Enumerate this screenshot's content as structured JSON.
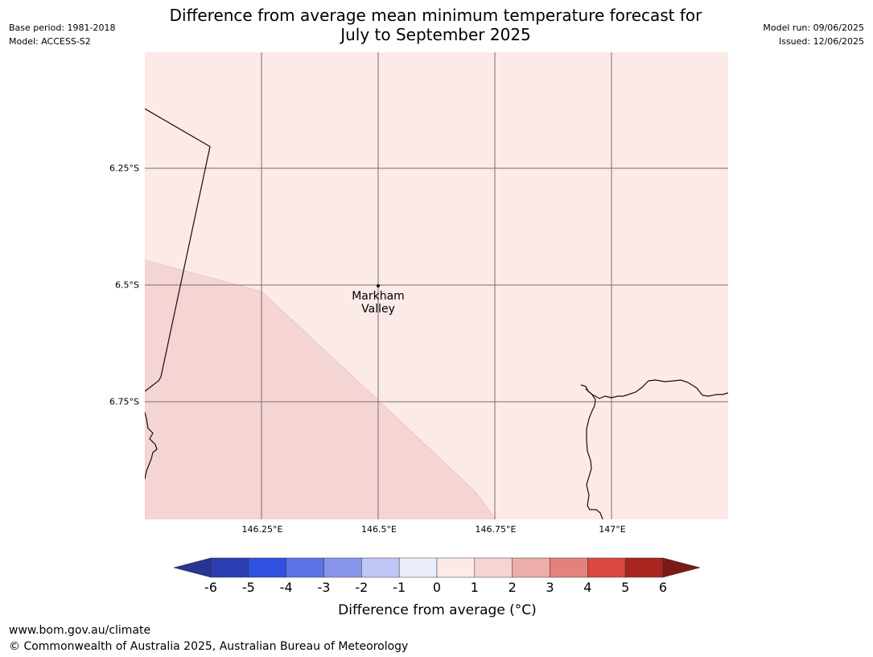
{
  "header": {
    "base_period": "Base period: 1981-2018",
    "model": "Model: ACCESS-S2",
    "model_run": "Model run: 09/06/2025",
    "issued": "Issued: 12/06/2025",
    "title_line1": "Difference from average mean minimum temperature forecast for",
    "title_line2": "July to September 2025"
  },
  "map": {
    "lat_labels": [
      "6.25°S",
      "6.5°S",
      "6.75°S"
    ],
    "lon_labels": [
      "146.25°E",
      "146.5°E",
      "146.75°E",
      "147°E"
    ],
    "place": {
      "name_line1": "Markham",
      "name_line2": "Valley"
    },
    "regions": [
      {
        "category": "0 to 1",
        "color": "#fbeae8"
      },
      {
        "category": "1 to 2",
        "color": "#f5d5d3"
      }
    ]
  },
  "colorbar": {
    "ticks": [
      "-6",
      "-5",
      "-4",
      "-3",
      "-2",
      "-1",
      "0",
      "1",
      "2",
      "3",
      "4",
      "5",
      "6"
    ],
    "colors": [
      "#283593",
      "#2a3eb1",
      "#3050e0",
      "#5b73e4",
      "#8795ec",
      "#c0c7f4",
      "#ebedfc",
      "#fbeae8",
      "#f5d5d3",
      "#edaea9",
      "#e5817c",
      "#d9483f",
      "#a8261f",
      "#7a1a17"
    ],
    "label": "Difference from average (°C)"
  },
  "footer": {
    "url": "www.bom.gov.au/climate",
    "copyright": "© Commonwealth of Australia 2025, Australian Bureau of Meteorology"
  }
}
